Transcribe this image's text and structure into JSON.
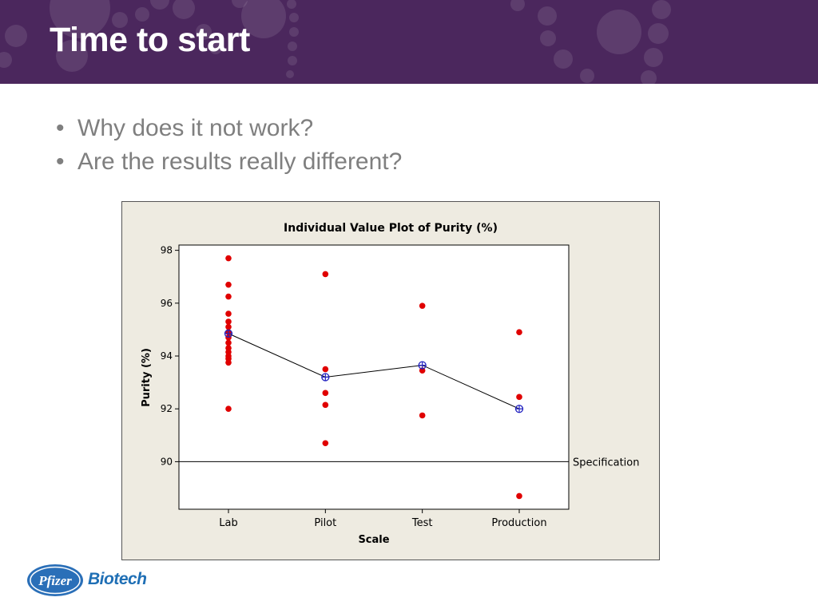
{
  "slide": {
    "title": "Time to start",
    "bullets": [
      "Why does it not work?",
      "Are the results really different?"
    ]
  },
  "footer": {
    "logo_text": "Pfizer",
    "brand": "Biotech"
  },
  "colors": {
    "header": "#4b275d",
    "points": "#e00000",
    "means": "#2020c0",
    "plot_bg": "#eeebe1"
  },
  "chart_data": {
    "type": "scatter",
    "title": "Individual Value Plot of Purity (%)",
    "xlabel": "Scale",
    "ylabel": "Purity (%)",
    "categories": [
      "Lab",
      "Pilot",
      "Test",
      "Production"
    ],
    "ylim": [
      88.2,
      98.2
    ],
    "yticks": [
      90,
      92,
      94,
      96,
      98
    ],
    "points": {
      "Lab": [
        97.7,
        96.7,
        96.25,
        95.6,
        95.3,
        95.1,
        94.9,
        94.7,
        94.5,
        94.3,
        94.15,
        94.0,
        93.9,
        93.75,
        92.0
      ],
      "Pilot": [
        97.1,
        93.5,
        92.6,
        92.15,
        90.7
      ],
      "Test": [
        95.9,
        93.45,
        91.75
      ],
      "Production": [
        94.9,
        92.45,
        88.7
      ]
    },
    "means": [
      94.85,
      93.2,
      93.65,
      92.0
    ],
    "reference_line": {
      "value": 90,
      "label": "Specification"
    }
  }
}
